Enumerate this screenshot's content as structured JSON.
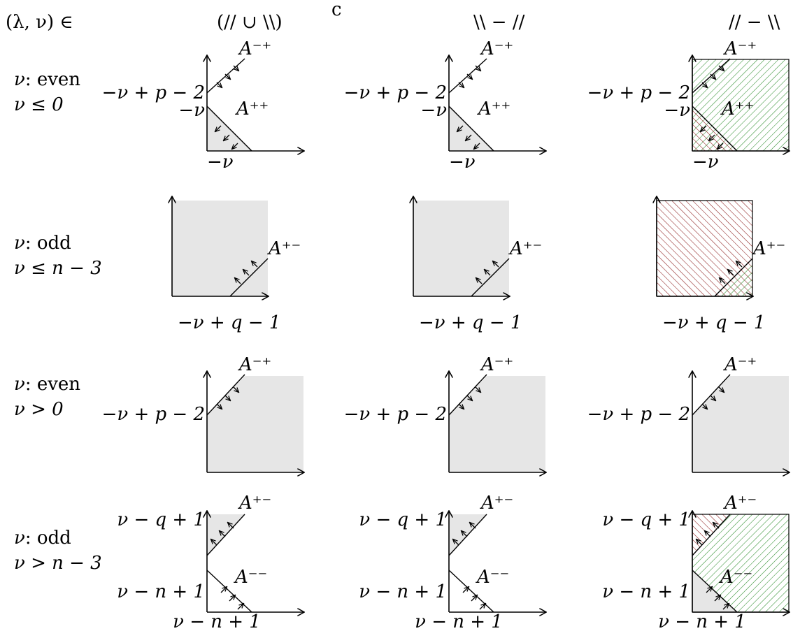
{
  "header": {
    "row_label_title": "(λ, ν) ∈",
    "columns": [
      "(// ∪ \\\\)",
      "\\\\ − //",
      "// − \\\\"
    ],
    "column0_superscript": "c"
  },
  "rows": [
    {
      "label_line1_var": "ν",
      "label_line1_text": ": even",
      "label_line2": "ν ≤ 0",
      "y_tick_upper": "−ν + p − 2",
      "y_tick_lower": "−ν",
      "x_tick": "−ν",
      "region_upper": "A⁻⁺",
      "region_lower": "A⁺⁺"
    },
    {
      "label_line1_var": "ν",
      "label_line1_text": ": odd",
      "label_line2": "ν ≤ n − 3",
      "x_tick": "−ν + q − 1",
      "region": "A⁺⁻"
    },
    {
      "label_line1_var": "ν",
      "label_line1_text": ": even",
      "label_line2": "ν > 0",
      "y_tick_upper": "−ν + p − 2",
      "region_upper": "A⁻⁺"
    },
    {
      "label_line1_var": "ν",
      "label_line1_text": ": odd",
      "label_line2": "ν > n − 3",
      "y_tick_upper": "ν − q + 1",
      "y_tick_lower": "ν − n + 1",
      "x_tick": "ν − n + 1",
      "region_upper": "A⁺⁻",
      "region_lower": "A⁻⁻"
    }
  ],
  "colors": {
    "gray_fill": "#e6e6e6",
    "green_hatch": "#2f8f2f",
    "red_hatch": "#8b1a1a"
  }
}
